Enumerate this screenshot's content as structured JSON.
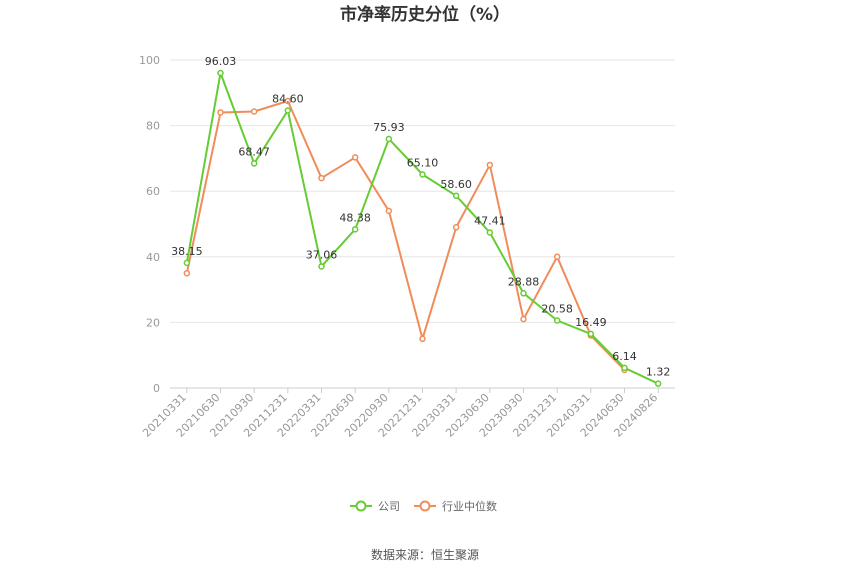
{
  "chart_data": {
    "type": "line",
    "title": "市净率历史分位（%）",
    "xlabel": "",
    "ylabel": "",
    "ylim": [
      0,
      100
    ],
    "yticks": [
      "0",
      "20",
      "40",
      "60",
      "80",
      "100"
    ],
    "grid": true,
    "legend_position": "bottom",
    "categories": [
      "20210331",
      "20210630",
      "20210930",
      "20211231",
      "20220331",
      "20220630",
      "20220930",
      "20221231",
      "20230331",
      "20230630",
      "20230930",
      "20231231",
      "20240331",
      "20240630",
      "20240826"
    ],
    "series": [
      {
        "name": "公司",
        "color": "#66cc33",
        "values": [
          38.15,
          96.03,
          68.47,
          84.6,
          37.06,
          48.38,
          75.93,
          65.1,
          58.6,
          47.41,
          28.88,
          20.58,
          16.49,
          6.14,
          1.32
        ],
        "labels": [
          "38.15",
          "96.03",
          "68.47",
          "84.60",
          "37.06",
          "48.38",
          "75.93",
          "65.10",
          "58.60",
          "47.41",
          "28.88",
          "20.58",
          "16.49",
          "6.14",
          "1.32"
        ]
      },
      {
        "name": "行业中位数",
        "color": "#f08c5a",
        "values": [
          35,
          84,
          84.3,
          87.5,
          64,
          70.3,
          54,
          15,
          49,
          68,
          21,
          40,
          16,
          5.5,
          null
        ]
      }
    ],
    "source": "数据来源：恒生聚源"
  }
}
